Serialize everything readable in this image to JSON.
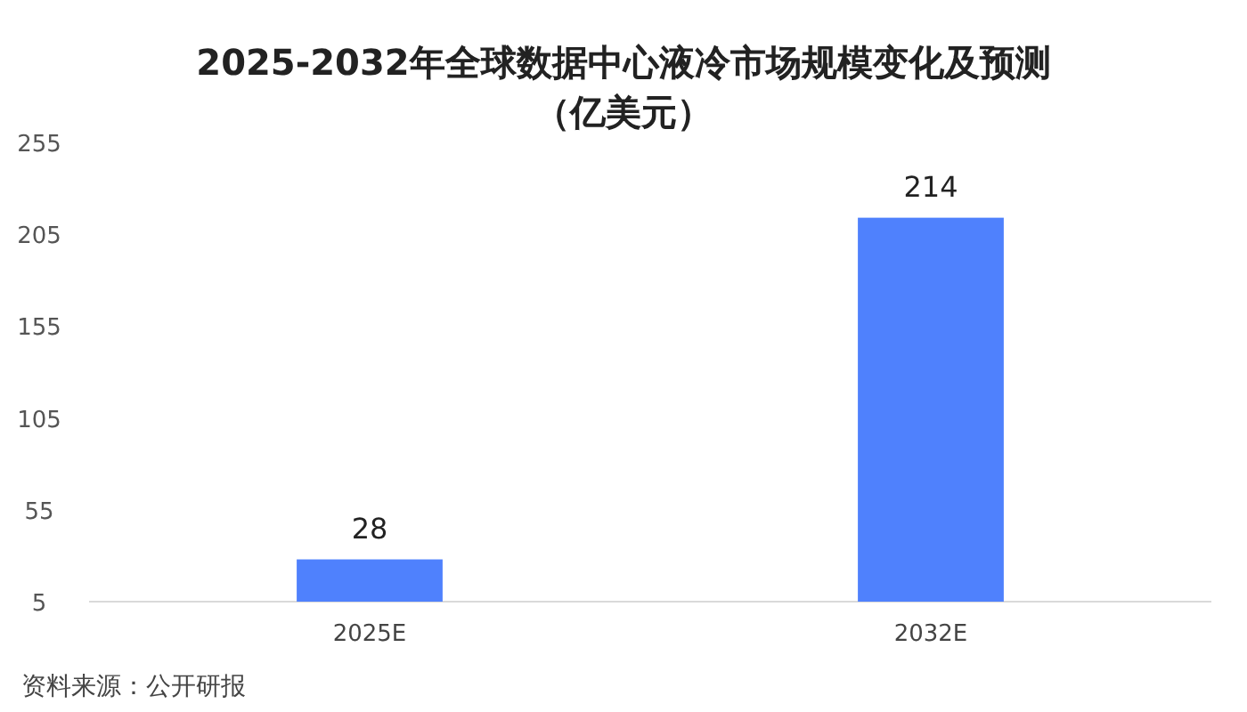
{
  "chart_data": {
    "type": "bar",
    "title": "2025-2032年全球数据中心液冷市场规模变化及预测",
    "subtitle": "（亿美元）",
    "categories": [
      "2025E",
      "2032E"
    ],
    "values": [
      28,
      214
    ],
    "color": "#4f81fd",
    "ylim": [
      5,
      255
    ],
    "yticks": [
      5,
      55,
      105,
      155,
      205,
      255
    ],
    "data_labels": true,
    "annotations": [
      "资料来源：公开研报"
    ]
  }
}
